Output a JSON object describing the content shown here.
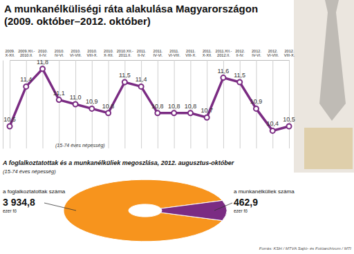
{
  "chart_data": [
    {
      "type": "line",
      "title": "A munkanélküliségi ráta alakulása Magyarországon",
      "subtitle": "(2009. október–2012. október)",
      "note": "(15-74 éves népesség)",
      "categories": [
        "2009. X-XII.",
        "2009.XII.-2010.II.",
        "2010. II-IV.",
        "2010. IV-VI.",
        "2010. VI-VIII.",
        "2010. VIII-X.",
        "2010. X-XII.",
        "2010.XII.-2011.II.",
        "2011. II-IV.",
        "2011. IV-VI.",
        "2011. VI-VIII.",
        "2011. VIII-X.",
        "2011. X-XII.",
        "2011.XII.-2012.II.",
        "2012. II-IV.",
        "2012. IV-VI.",
        "2012. VI-VIII.",
        "2012. VIII-X."
      ],
      "values": [
        10.5,
        11.4,
        11.8,
        11.1,
        11.0,
        10.9,
        10.8,
        11.5,
        11.4,
        10.8,
        10.8,
        10.8,
        10.7,
        11.6,
        11.5,
        10.9,
        10.4,
        10.5
      ],
      "value_labels": [
        "10,5",
        "11,4",
        "11,8",
        "11,1",
        "11,0",
        "10,9",
        "10,8",
        "11,5",
        "11,4",
        "10,8",
        "10,8",
        "10,8",
        "10,7",
        "11,6",
        "11,5",
        "10,9",
        "10,4",
        "10,5"
      ],
      "color": "#7b2c83",
      "marker": "circle",
      "data_labels": true,
      "tick_labels": "x",
      "grid": true,
      "ylim": [
        10.0,
        12.0
      ]
    },
    {
      "type": "pie",
      "title": "A foglalkoztatottak és a munkanélküliek megoszlása, 2012. augusztus-október",
      "subtitle": "(15-74 éves népesség)",
      "categories": [
        "a foglalkoztatottak száma",
        "a munkanélküliek száma"
      ],
      "values": [
        3934.8,
        462.9
      ],
      "value_labels": [
        "3 934,8",
        "462,9"
      ],
      "unit": "ezer fő",
      "colors": [
        "#f7941d",
        "#7b2c83"
      ],
      "data_labels": true
    }
  ],
  "source": "Forrás: KSH / MTVA Sajtó- és Fotóarchívum / MTI"
}
